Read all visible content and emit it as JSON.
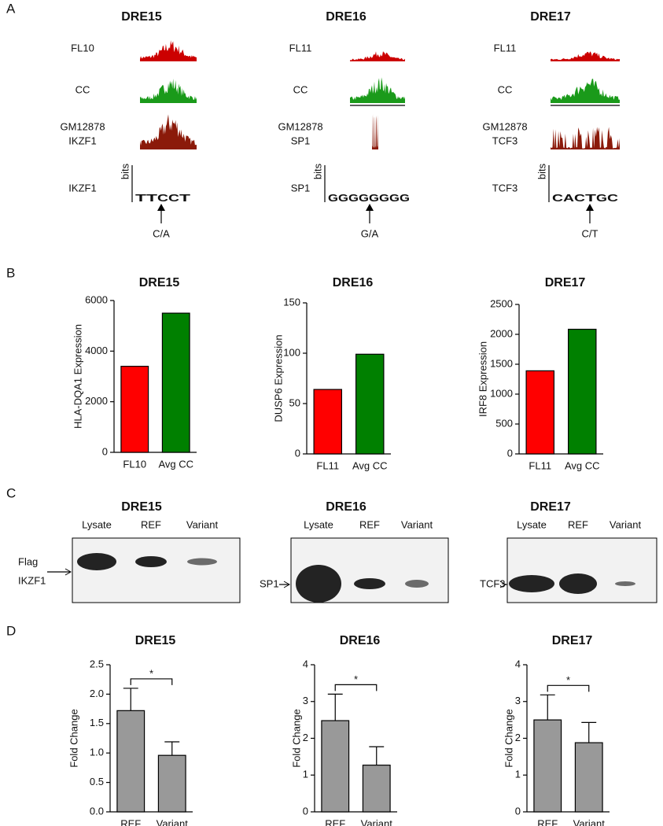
{
  "panel_labels": [
    "A",
    "B",
    "C",
    "D"
  ],
  "panel_a": {
    "columns": [
      {
        "title": "DRE15",
        "sample": "FL10",
        "control": "CC",
        "chip": [
          "GM12878",
          "IKZF1"
        ],
        "motif": "IKZF1",
        "logo": [
          "T",
          "T",
          "C",
          "C",
          "T"
        ],
        "logo_axis": "bits",
        "variant": "C/A"
      },
      {
        "title": "DRE16",
        "sample": "FL11",
        "control": "CC",
        "chip": [
          "GM12878",
          "SP1"
        ],
        "motif": "SP1",
        "logo": [
          "G",
          "G",
          "G",
          "G",
          "G",
          "G",
          "G",
          "G"
        ],
        "logo_axis": "bits",
        "variant": "G/A"
      },
      {
        "title": "DRE17",
        "sample": "FL11",
        "control": "CC",
        "chip": [
          "GM12878",
          "TCF3"
        ],
        "motif": "TCF3",
        "logo": [
          "C",
          "A",
          "C",
          "T",
          "G",
          "C"
        ],
        "logo_axis": "bits",
        "variant": "C/T"
      }
    ]
  },
  "panel_c": {
    "columns": [
      {
        "title": "DRE15",
        "lanes": [
          "Lysate",
          "REF",
          "Variant"
        ],
        "protein": [
          "Flag",
          "IKZF1"
        ]
      },
      {
        "title": "DRE16",
        "lanes": [
          "Lysate",
          "REF",
          "Variant"
        ],
        "protein": [
          "SP1"
        ]
      },
      {
        "title": "DRE17",
        "lanes": [
          "Lysate",
          "REF",
          "Variant"
        ],
        "protein": [
          "TCF3"
        ]
      }
    ]
  },
  "chart_data": [
    {
      "type": "bar",
      "title": "DRE15",
      "y_label": "HLA-DQA1 Expression",
      "categories": [
        "FL10",
        "Avg CC"
      ],
      "values": [
        3400,
        5500
      ],
      "colors": [
        "#ff0000",
        "#008000"
      ],
      "ylim": [
        0,
        6000
      ],
      "yticks": [
        0,
        2000,
        4000,
        6000
      ]
    },
    {
      "type": "bar",
      "title": "DRE16",
      "y_label": "DUSP6 Expression",
      "categories": [
        "FL11",
        "Avg CC"
      ],
      "values": [
        64,
        99
      ],
      "colors": [
        "#ff0000",
        "#008000"
      ],
      "ylim": [
        0,
        150
      ],
      "yticks": [
        0,
        50,
        100,
        150
      ]
    },
    {
      "type": "bar",
      "title": "DRE17",
      "y_label": "IRF8 Expression",
      "categories": [
        "FL11",
        "Avg CC"
      ],
      "values": [
        1390,
        2085
      ],
      "colors": [
        "#ff0000",
        "#008000"
      ],
      "ylim": [
        0,
        2500
      ],
      "yticks": [
        0,
        500,
        1000,
        1500,
        2000,
        2500
      ]
    },
    {
      "type": "bar",
      "title": "DRE15",
      "y_label": "Fold Change",
      "categories": [
        "REF",
        "Variant"
      ],
      "values": [
        1.72,
        0.96
      ],
      "errors": [
        0.38,
        0.23
      ],
      "colors": [
        "#999999",
        "#999999"
      ],
      "ylim": [
        0,
        2.5
      ],
      "yticks": [
        {
          "value": 0,
          "label": "0.0"
        },
        {
          "value": 0.5,
          "label": "0.5"
        },
        {
          "value": 1,
          "label": "1.0"
        },
        {
          "value": 1.5,
          "label": "1.5"
        },
        {
          "value": 2,
          "label": "2.0"
        },
        {
          "value": 2.5,
          "label": "2.5"
        }
      ],
      "annotation": "*"
    },
    {
      "type": "bar",
      "title": "DRE16",
      "y_label": "Fold Change",
      "categories": [
        "REF",
        "Variant"
      ],
      "values": [
        2.48,
        1.27
      ],
      "errors": [
        0.72,
        0.5
      ],
      "colors": [
        "#999999",
        "#999999"
      ],
      "ylim": [
        0,
        4
      ],
      "yticks": [
        0,
        1,
        2,
        3,
        4
      ],
      "annotation": "*"
    },
    {
      "type": "bar",
      "title": "DRE17",
      "y_label": "Fold Change",
      "categories": [
        "REF",
        "Variant"
      ],
      "values": [
        2.5,
        1.88
      ],
      "errors": [
        0.68,
        0.55
      ],
      "colors": [
        "#999999",
        "#999999"
      ],
      "ylim": [
        0,
        4
      ],
      "yticks": [
        0,
        1,
        2,
        3,
        4
      ],
      "annotation": "*"
    }
  ]
}
